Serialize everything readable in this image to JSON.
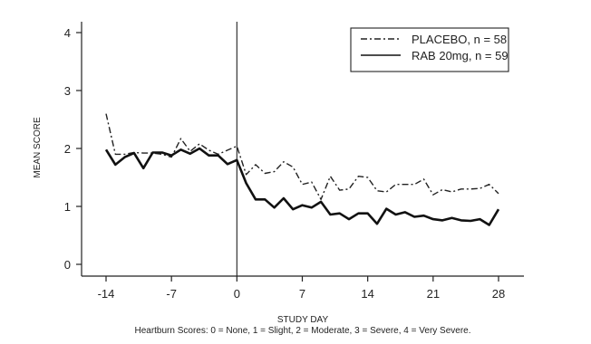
{
  "chart_data": {
    "type": "line",
    "xlabel": "STUDY DAY",
    "ylabel": "MEAN SCORE",
    "footnote": "Heartburn Scores: 0 = None, 1 = Slight, 2 = Moderate, 3 = Severe, 4 = Very Severe.",
    "xlim": [
      -14,
      28
    ],
    "ylim": [
      0,
      4
    ],
    "xticks": [
      -14,
      -7,
      0,
      7,
      14,
      21,
      28
    ],
    "yticks": [
      0,
      1,
      2,
      3,
      4
    ],
    "reference_line_x": 0,
    "grid": false,
    "legend_position": "top-right",
    "x": [
      -14,
      -13,
      -12,
      -11,
      -10,
      -9,
      -8,
      -7,
      -6,
      -5,
      -4,
      -3,
      -2,
      -1,
      0,
      1,
      2,
      3,
      4,
      5,
      6,
      7,
      8,
      9,
      10,
      11,
      12,
      13,
      14,
      15,
      16,
      17,
      18,
      19,
      20,
      21,
      22,
      23,
      24,
      25,
      26,
      27,
      28
    ],
    "series": [
      {
        "name": "PLACEBO, n = 58",
        "style": "dash-dot",
        "values": [
          2.6,
          1.9,
          1.9,
          1.93,
          1.92,
          1.92,
          1.9,
          1.85,
          2.17,
          1.95,
          2.08,
          1.97,
          1.9,
          1.97,
          2.04,
          1.55,
          1.72,
          1.57,
          1.6,
          1.77,
          1.68,
          1.38,
          1.42,
          1.12,
          1.52,
          1.28,
          1.3,
          1.52,
          1.5,
          1.27,
          1.25,
          1.38,
          1.38,
          1.38,
          1.47,
          1.2,
          1.29,
          1.25,
          1.3,
          1.3,
          1.31,
          1.38,
          1.22
        ]
      },
      {
        "name": "RAB 20mg, n = 59",
        "style": "solid",
        "values": [
          1.98,
          1.72,
          1.85,
          1.92,
          1.66,
          1.93,
          1.93,
          1.88,
          1.98,
          1.91,
          2.0,
          1.88,
          1.88,
          1.73,
          1.8,
          1.4,
          1.12,
          1.12,
          0.98,
          1.14,
          0.95,
          1.02,
          0.98,
          1.08,
          0.86,
          0.88,
          0.78,
          0.88,
          0.88,
          0.7,
          0.96,
          0.86,
          0.9,
          0.82,
          0.84,
          0.78,
          0.76,
          0.8,
          0.76,
          0.75,
          0.78,
          0.68,
          0.95
        ]
      }
    ]
  }
}
